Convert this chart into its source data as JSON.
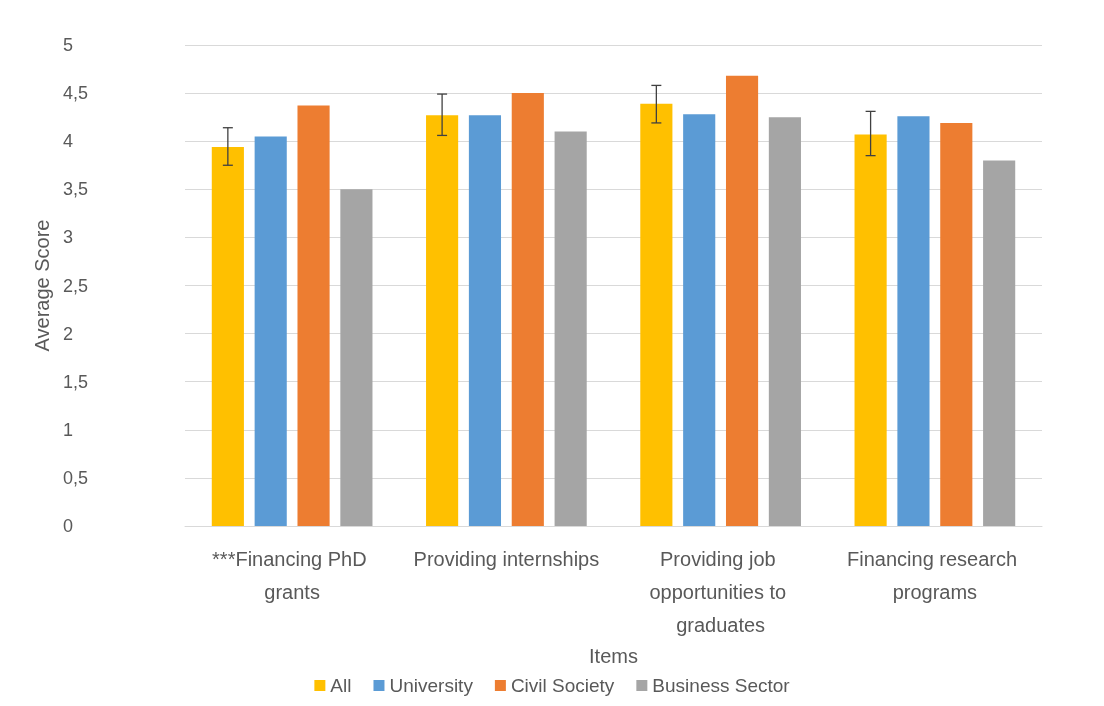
{
  "chart_data": {
    "type": "bar",
    "xlabel": "Items",
    "ylabel": "Average Score",
    "categories": [
      "***Financing PhD grants",
      "Providing internships",
      "Providing job opportunities to graduates",
      "Financing research programs"
    ],
    "series": [
      {
        "name": "All",
        "color": "#ffc000",
        "values": [
          3.94,
          4.27,
          4.39,
          4.07
        ],
        "errors": [
          [
            3.75,
            4.14
          ],
          [
            4.06,
            4.49
          ],
          [
            4.19,
            4.58
          ],
          [
            3.85,
            4.31
          ]
        ]
      },
      {
        "name": "University",
        "color": "#5b9bd5",
        "values": [
          4.05,
          4.27,
          4.28,
          4.26
        ]
      },
      {
        "name": "Civil Society",
        "color": "#ed7d31",
        "values": [
          4.37,
          4.5,
          4.68,
          4.19
        ]
      },
      {
        "name": "Business Sector",
        "color": "#a5a5a5",
        "values": [
          3.5,
          4.1,
          4.25,
          3.8
        ]
      }
    ],
    "ylim": [
      0,
      5
    ],
    "yticks": [
      0,
      {
        "value": 0.5,
        "label": "0,5"
      },
      1,
      {
        "value": 1.5,
        "label": "1,5"
      },
      2,
      {
        "value": 2.5,
        "label": "2,5"
      },
      3,
      {
        "value": 3.5,
        "label": "3,5"
      },
      4,
      {
        "value": 4.5,
        "label": "4,5"
      },
      5
    ],
    "grid": "y",
    "legend": "bottom"
  }
}
